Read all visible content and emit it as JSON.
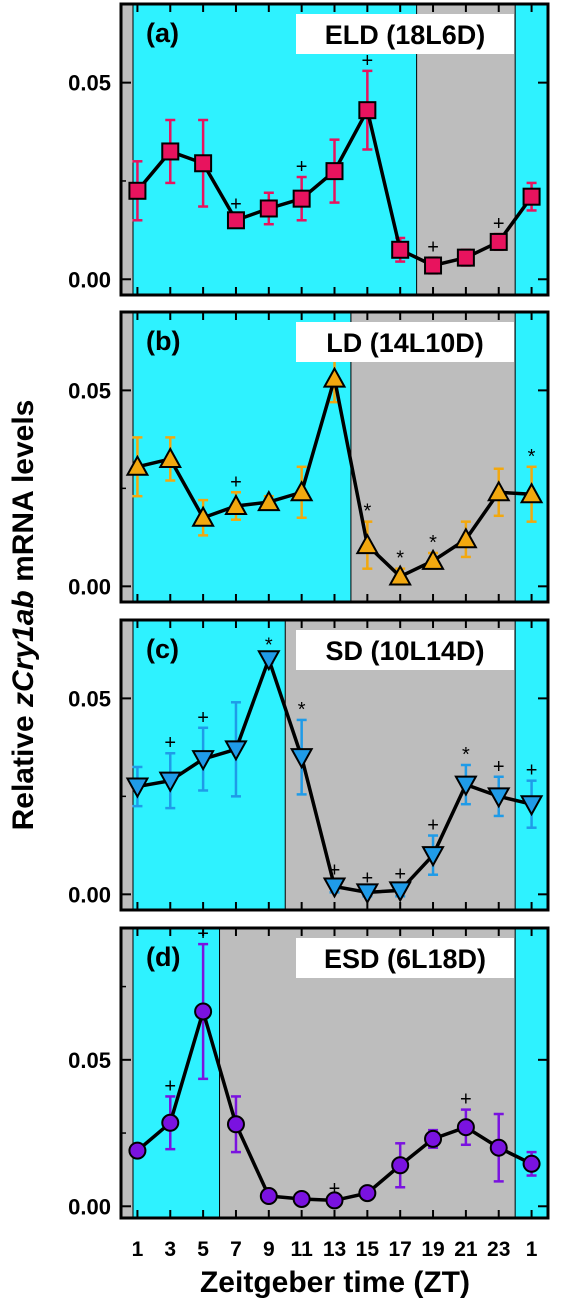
{
  "ylabel_prefix": "Relative ",
  "ylabel_gene": "zCry1ab",
  "ylabel_suffix": " mRNA levels",
  "xlabel": "Zeitgeber time (ZT)",
  "chart_data": [
    {
      "type": "line",
      "panel_label": "(a)",
      "title": "ELD (18L6D)",
      "color": "#e8135e",
      "marker": "square",
      "x": [
        1,
        3,
        5,
        7,
        9,
        11,
        13,
        15,
        17,
        19,
        21,
        23,
        25
      ],
      "x_tick_labels": [
        "1",
        "3",
        "5",
        "7",
        "9",
        "11",
        "13",
        "15",
        "17",
        "19",
        "21",
        "23",
        "1"
      ],
      "y": [
        0.0225,
        0.0325,
        0.0295,
        0.015,
        0.018,
        0.0205,
        0.0275,
        0.043,
        0.0075,
        0.0035,
        0.0055,
        0.0095,
        0.021
      ],
      "err": [
        0.0075,
        0.008,
        0.011,
        0.0015,
        0.004,
        0.0055,
        0.008,
        0.01,
        0.003,
        0.002,
        0.002,
        0.002,
        0.0035
      ],
      "marks": [
        "",
        "",
        "",
        "+",
        "",
        "+",
        "",
        "+",
        "",
        "+",
        "",
        "+",
        ""
      ],
      "light_intervals": [
        [
          0.0,
          18.0
        ],
        [
          24.0,
          26.0
        ]
      ],
      "dark_intervals": [
        [
          18.0,
          24.0
        ]
      ],
      "ylim": [
        -0.004,
        0.07
      ],
      "yticks": [
        "0.00",
        "0.05"
      ],
      "ytick_values": [
        0.0,
        0.05
      ]
    },
    {
      "type": "line",
      "panel_label": "(b)",
      "title": "LD  (14L10D)",
      "color": "#f2a80f",
      "marker": "triangle-up",
      "x": [
        1,
        3,
        5,
        7,
        9,
        11,
        13,
        15,
        17,
        19,
        21,
        23,
        25
      ],
      "x_tick_labels": [
        "1",
        "3",
        "5",
        "7",
        "9",
        "11",
        "13",
        "15",
        "17",
        "19",
        "21",
        "23",
        "1"
      ],
      "y": [
        0.0305,
        0.0325,
        0.0175,
        0.0205,
        0.0215,
        0.024,
        0.053,
        0.0105,
        0.0025,
        0.0065,
        0.012,
        0.024,
        0.0235
      ],
      "err": [
        0.0075,
        0.0055,
        0.0045,
        0.0035,
        0.0015,
        0.0065,
        0.006,
        0.006,
        0.002,
        0.002,
        0.0045,
        0.006,
        0.007
      ],
      "marks": [
        "",
        "",
        "",
        "+",
        "",
        "",
        "*",
        "*",
        "*",
        "*",
        "",
        "",
        "*"
      ],
      "light_intervals": [
        [
          0.0,
          14.0
        ],
        [
          24.0,
          26.0
        ]
      ],
      "dark_intervals": [
        [
          14.0,
          24.0
        ]
      ],
      "ylim": [
        -0.004,
        0.07
      ],
      "yticks": [
        "0.00",
        "0.05"
      ],
      "ytick_values": [
        0.0,
        0.05
      ]
    },
    {
      "type": "line",
      "panel_label": "(c)",
      "title": "SD  (10L14D)",
      "color": "#1f9be8",
      "marker": "triangle-down",
      "x": [
        1,
        3,
        5,
        7,
        9,
        11,
        13,
        15,
        17,
        19,
        21,
        23,
        25
      ],
      "x_tick_labels": [
        "1",
        "3",
        "5",
        "7",
        "9",
        "11",
        "13",
        "15",
        "17",
        "19",
        "21",
        "23",
        "1"
      ],
      "y": [
        0.0275,
        0.029,
        0.0345,
        0.037,
        0.06,
        0.035,
        0.002,
        0.0005,
        0.001,
        0.01,
        0.028,
        0.025,
        0.023
      ],
      "err": [
        0.005,
        0.007,
        0.008,
        0.012,
        0.001,
        0.0095,
        0.0015,
        0.001,
        0.0015,
        0.005,
        0.005,
        0.005,
        0.006
      ],
      "marks": [
        "",
        "+",
        "+",
        "",
        "*",
        "*",
        "+",
        "+",
        "+",
        "+",
        "*",
        "+",
        "+"
      ],
      "light_intervals": [
        [
          0.0,
          10.0
        ],
        [
          24.0,
          26.0
        ]
      ],
      "dark_intervals": [
        [
          10.0,
          24.0
        ]
      ],
      "ylim": [
        -0.004,
        0.07
      ],
      "yticks": [
        "0.00",
        "0.05"
      ],
      "ytick_values": [
        0.0,
        0.05
      ]
    },
    {
      "type": "line",
      "panel_label": "(d)",
      "title": "ESD (6L18D)",
      "color": "#7a12e0",
      "marker": "circle",
      "x": [
        1,
        3,
        5,
        7,
        9,
        11,
        13,
        15,
        17,
        19,
        21,
        23,
        25
      ],
      "x_tick_labels": [
        "1",
        "3",
        "5",
        "7",
        "9",
        "11",
        "13",
        "15",
        "17",
        "19",
        "21",
        "23",
        "1"
      ],
      "y": [
        0.019,
        0.0285,
        0.0665,
        0.028,
        0.0035,
        0.0025,
        0.002,
        0.0045,
        0.014,
        0.023,
        0.027,
        0.02,
        0.0145
      ],
      "err": [
        0.0015,
        0.009,
        0.023,
        0.0095,
        0.0005,
        0.0005,
        0.0005,
        0.001,
        0.0075,
        0.003,
        0.006,
        0.0115,
        0.004
      ],
      "marks": [
        "",
        "+",
        "+",
        "",
        "",
        "",
        "+",
        "",
        "",
        "",
        "+",
        "",
        ""
      ],
      "light_intervals": [
        [
          0.0,
          6.0
        ],
        [
          24.0,
          26.0
        ]
      ],
      "dark_intervals": [
        [
          6.0,
          24.0
        ]
      ],
      "ylim": [
        -0.004,
        0.095
      ],
      "yticks": [
        "0.00",
        "0.05"
      ],
      "ytick_values": [
        0.0,
        0.05
      ]
    }
  ],
  "colors": {
    "light": "#2ef2ff",
    "dark": "#bdbdbd",
    "line": "#000000"
  }
}
